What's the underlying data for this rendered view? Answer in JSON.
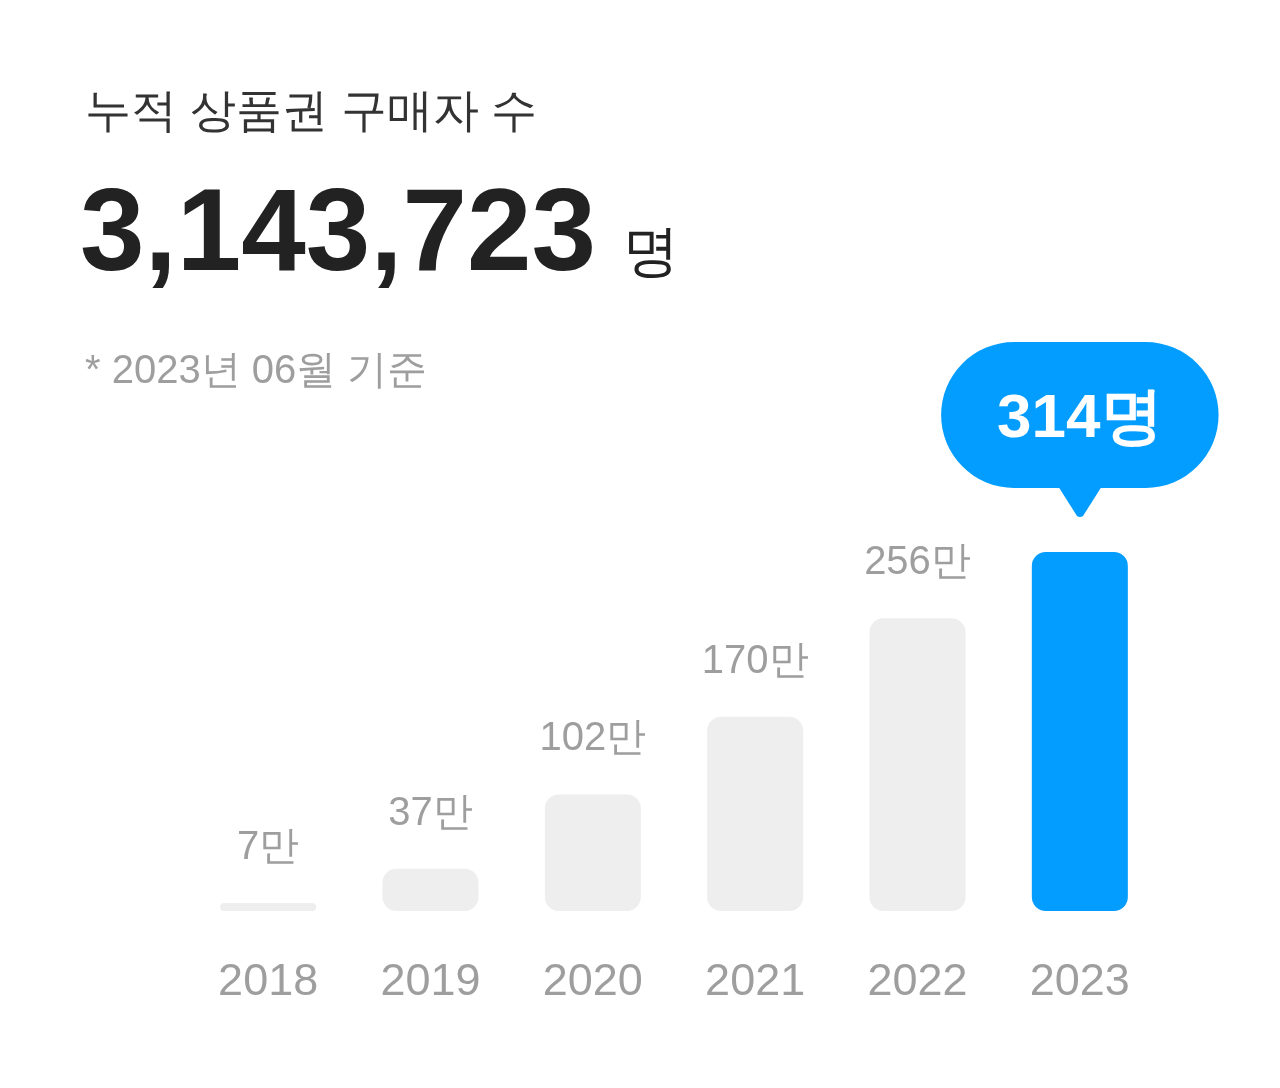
{
  "chart_data": {
    "type": "bar",
    "title": "누적 상품권 구매자 수",
    "subtitle": "3,143,723 명",
    "annotations": [
      "* 2023년 06월 기준"
    ],
    "categories": [
      "2018",
      "2019",
      "2020",
      "2021",
      "2022",
      "2023"
    ],
    "values": [
      7,
      37,
      102,
      170,
      256,
      314
    ],
    "colors": [
      "#eeeeee",
      "#eeeeee",
      "#eeeeee",
      "#eeeeee",
      "#eeeeee",
      "#039cff"
    ],
    "value_labels": [
      "7만",
      "37만",
      "102만",
      "170만",
      "256만",
      "314명"
    ]
  }
}
